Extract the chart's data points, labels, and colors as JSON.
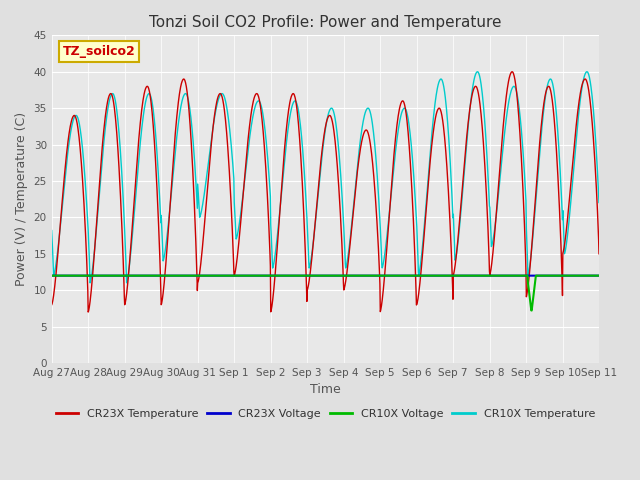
{
  "title": "Tonzi Soil CO2 Profile: Power and Temperature",
  "xlabel": "Time",
  "ylabel": "Power (V) / Temperature (C)",
  "ylim": [
    0,
    45
  ],
  "yticks": [
    0,
    5,
    10,
    15,
    20,
    25,
    30,
    35,
    40,
    45
  ],
  "n_days": 15,
  "xtick_labels": [
    "Aug 27",
    "Aug 28",
    "Aug 29",
    "Aug 30",
    "Aug 31",
    "Sep 1",
    "Sep 2",
    "Sep 3",
    "Sep 4",
    "Sep 5",
    "Sep 6",
    "Sep 7",
    "Sep 8",
    "Sep 9",
    "Sep 10",
    "Sep 11"
  ],
  "fig_bg_color": "#e0e0e0",
  "plot_bg_color": "#e8e8e8",
  "grid_color": "#ffffff",
  "cr23x_temp_color": "#cc0000",
  "cr23x_volt_color": "#0000cc",
  "cr10x_volt_color": "#00bb00",
  "cr10x_temp_color": "#00cccc",
  "volt_level": 12.0,
  "annotation_text": "TZ_soilco2",
  "annotation_facecolor": "#ffffcc",
  "annotation_edgecolor": "#ccaa00",
  "annotation_fontcolor": "#cc0000",
  "annotation_fontsize": 9,
  "title_fontsize": 11,
  "label_fontsize": 9,
  "tick_fontsize": 7.5,
  "legend_fontsize": 8
}
